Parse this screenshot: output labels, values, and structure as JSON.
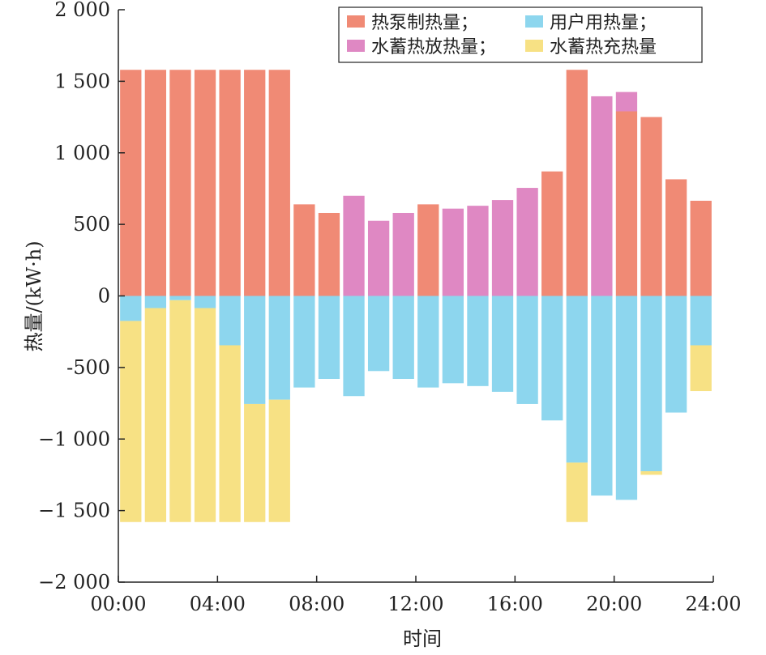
{
  "chart_data": {
    "type": "bar",
    "stacked": true,
    "xlabel": "时间",
    "ylabel": "热量/(kW·h)",
    "ylim": [
      -2000,
      2000
    ],
    "yticks": [
      2000,
      1500,
      1000,
      500,
      0,
      -500,
      -1000,
      -1500,
      -2000
    ],
    "ytick_labels": [
      "2 000",
      "1 500",
      "1 000",
      "500",
      "0",
      "-500",
      "−1 000",
      "−1 500",
      "−2 000"
    ],
    "xlim_hours": [
      0,
      24
    ],
    "xticks": [
      "00:00",
      "04:00",
      "08:00",
      "12:00",
      "16:00",
      "20:00",
      "24:00"
    ],
    "hours": [
      1,
      2,
      3,
      4,
      5,
      6,
      7,
      8,
      9,
      10,
      11,
      12,
      13,
      14,
      15,
      16,
      17,
      18,
      19,
      20,
      21,
      22,
      23,
      24
    ],
    "legend_position": "top-right",
    "series": [
      {
        "name": "热泵制热量；",
        "color": "#f08a75",
        "values": [
          1580,
          1580,
          1580,
          1580,
          1580,
          1580,
          1580,
          640,
          580,
          0,
          0,
          0,
          640,
          0,
          0,
          0,
          0,
          870,
          1580,
          0,
          1290,
          1250,
          815,
          665
        ]
      },
      {
        "name": "水蓄热放热量；",
        "color": "#df88c3",
        "values": [
          0,
          0,
          0,
          0,
          0,
          0,
          0,
          0,
          0,
          700,
          525,
          580,
          0,
          610,
          630,
          670,
          755,
          0,
          0,
          1395,
          135,
          0,
          0,
          0
        ]
      },
      {
        "name": "用户用热量；",
        "color": "#8dd6ee",
        "values": [
          -175,
          -85,
          -30,
          -85,
          -345,
          -755,
          -725,
          -640,
          -580,
          -700,
          -525,
          -580,
          -640,
          -610,
          -630,
          -670,
          -755,
          -870,
          -1165,
          -1395,
          -1425,
          -1225,
          -815,
          -345
        ]
      },
      {
        "name": "水蓄热充热量",
        "color": "#f7e184",
        "values": [
          -1405,
          -1495,
          -1550,
          -1495,
          -1235,
          -825,
          -855,
          0,
          0,
          0,
          0,
          0,
          0,
          0,
          0,
          0,
          0,
          0,
          -415,
          0,
          0,
          -25,
          0,
          -320
        ]
      }
    ],
    "legend": [
      {
        "label": "热泵制热量；",
        "color": "#f08a75"
      },
      {
        "label": "用户用热量；",
        "color": "#8dd6ee"
      },
      {
        "label": "水蓄热放热量；",
        "color": "#df88c3"
      },
      {
        "label": "水蓄热充热量",
        "color": "#f7e184"
      }
    ]
  }
}
